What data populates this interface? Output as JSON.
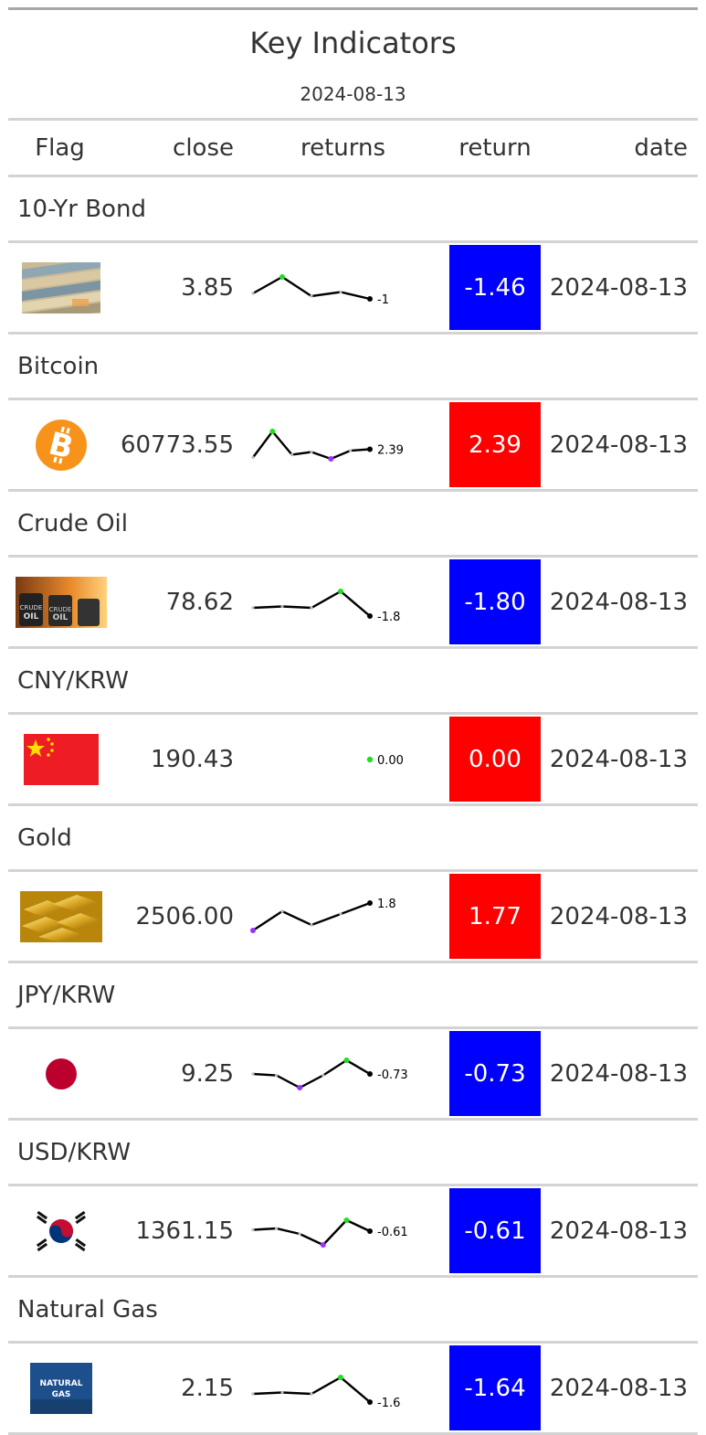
{
  "title": "Key Indicators",
  "subtitle": "2024-08-13",
  "columns": [
    "Flag",
    "close",
    "returns",
    "return",
    "date"
  ],
  "colors": {
    "up": "#ff0000",
    "down": "#0000ff",
    "max_point": "#22dd22",
    "min_point": "#9933ff",
    "last_point": "#000000"
  },
  "rows": [
    {
      "name": "10-Yr Bond",
      "icon": "bond-banknotes-icon",
      "close": "3.85",
      "spark": [
        0.3,
        0.9,
        0.2,
        0.35,
        0.1
      ],
      "spark_label": "-1",
      "return": "-1.46",
      "direction": "down",
      "date": "2024-08-13"
    },
    {
      "name": "Bitcoin",
      "icon": "bitcoin-icon",
      "close": "60773.55",
      "spark": [
        0.05,
        1.0,
        0.15,
        0.25,
        0.0,
        0.3,
        0.35
      ],
      "spark_label": "2.39",
      "return": "2.39",
      "direction": "up",
      "date": "2024-08-13"
    },
    {
      "name": "Crude Oil",
      "icon": "crude-oil-barrels-icon",
      "close": "78.62",
      "spark": [
        0.3,
        0.35,
        0.3,
        0.9,
        0.0
      ],
      "spark_label": "-1.8",
      "return": "-1.80",
      "direction": "down",
      "date": "2024-08-13"
    },
    {
      "name": "CNY/KRW",
      "icon": "china-flag-icon",
      "close": "190.43",
      "spark": [
        0.5
      ],
      "spark_label": "0.00",
      "return": "0.00",
      "direction": "up",
      "date": "2024-08-13"
    },
    {
      "name": "Gold",
      "icon": "gold-bars-icon",
      "close": "2506.00",
      "spark": [
        0.0,
        0.7,
        0.2,
        0.6,
        1.0
      ],
      "spark_label": "1.8",
      "return": "1.77",
      "direction": "up",
      "date": "2024-08-13"
    },
    {
      "name": "JPY/KRW",
      "icon": "japan-flag-icon",
      "close": "9.25",
      "spark": [
        0.5,
        0.45,
        0.0,
        0.45,
        1.0,
        0.5
      ],
      "spark_label": "-0.73",
      "return": "-0.73",
      "direction": "down",
      "date": "2024-08-13"
    },
    {
      "name": "USD/KRW",
      "icon": "korea-flag-icon",
      "close": "1361.15",
      "spark": [
        0.55,
        0.6,
        0.4,
        0.0,
        0.9,
        0.5
      ],
      "spark_label": "-0.61",
      "return": "-0.61",
      "direction": "down",
      "date": "2024-08-13"
    },
    {
      "name": "Natural Gas",
      "icon": "natural-gas-icon",
      "icon_text_1": "NATURAL",
      "icon_text_2": "GAS",
      "close": "2.15",
      "spark": [
        0.3,
        0.35,
        0.3,
        0.9,
        0.0
      ],
      "spark_label": "-1.6",
      "return": "-1.64",
      "direction": "down",
      "date": "2024-08-13"
    }
  ]
}
